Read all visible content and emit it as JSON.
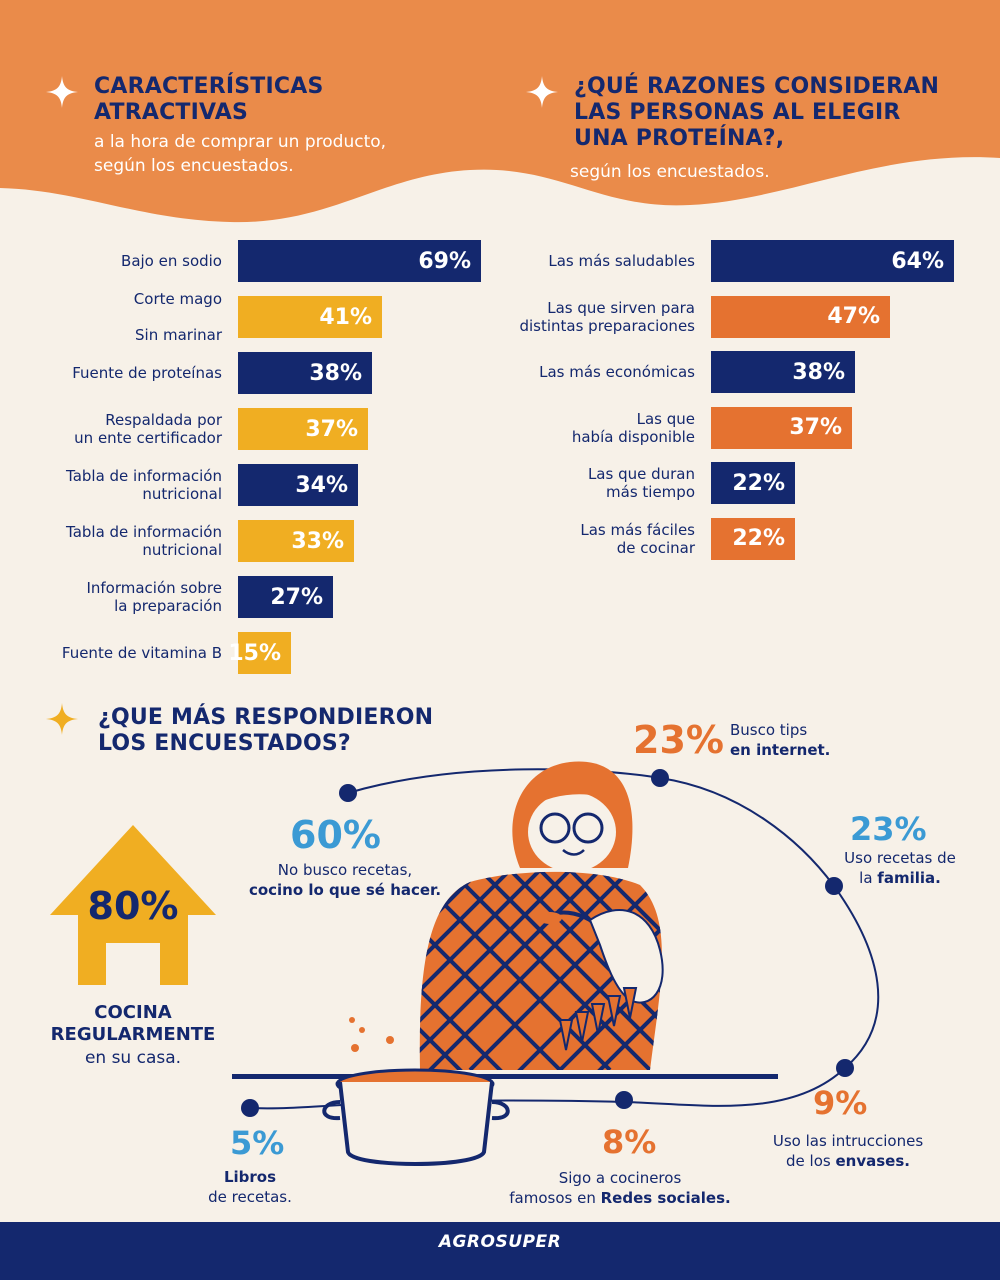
{
  "colors": {
    "navy": "#14286e",
    "orange": "#e57230",
    "yellow": "#f0ae22",
    "cream": "#f7f1e8",
    "header_orange": "#ea8b4a",
    "light_blue": "#3b9ad4"
  },
  "section_left": {
    "title": "CARACTERÍSTICAS\nATRACTIVAS",
    "subtitle": "a la hora de comprar un producto,\nsegún los encuestados."
  },
  "section_right": {
    "title": "¿QUÉ RAZONES CONSIDERAN\nLAS PERSONAS AL ELEGIR\nUNA PROTEÍNA?,",
    "subtitle": "según los encuestados."
  },
  "chart_data": [
    {
      "type": "bar",
      "orientation": "horizontal",
      "categories": [
        "Bajo en sodio",
        "Corte mago\n\nSin marinar",
        "Fuente de proteínas",
        "Respaldada por\nun ente certificador",
        "Tabla de información\nnutricional",
        "Tabla de información\nnutricional",
        "Información sobre\nla preparación",
        "Fuente de vitamina B"
      ],
      "values": [
        69,
        41,
        38,
        37,
        34,
        33,
        27,
        15
      ],
      "labels": [
        "69%",
        "41%",
        "38%",
        "37%",
        "34%",
        "33%",
        "27%",
        "15%"
      ],
      "colors": [
        "navy",
        "yellow",
        "navy",
        "yellow",
        "navy",
        "yellow",
        "navy",
        "yellow"
      ],
      "unit": "%"
    },
    {
      "type": "bar",
      "orientation": "horizontal",
      "categories": [
        "Las más saludables",
        "Las que sirven para\ndistintas preparaciones",
        "Las más económicas",
        "Las que\nhabía disponible",
        "Las que duran\nmás tiempo",
        "Las más fáciles\nde cocinar"
      ],
      "values": [
        64,
        47,
        38,
        37,
        22,
        22
      ],
      "labels": [
        "64%",
        "47%",
        "38%",
        "37%",
        "22%",
        "22%"
      ],
      "colors": [
        "navy",
        "orange",
        "navy",
        "orange",
        "navy",
        "orange"
      ],
      "unit": "%"
    }
  ],
  "section_bottom": {
    "title": "¿QUE MÁS RESPONDIERON\nLOS ENCUESTADOS?",
    "house": {
      "pct": "80%",
      "line1": "COCINA",
      "line2": "REGULARMENTE",
      "line3": "en su casa."
    },
    "stats": {
      "s60": {
        "pct": "60%",
        "text": "No busco recetas,",
        "bold": "cocino lo que sé hacer."
      },
      "s23a": {
        "pct": "23%",
        "text": "Busco tips",
        "bold": "en internet."
      },
      "s23b": {
        "pct": "23%",
        "text": "Uso recetas de",
        "text2": "la",
        "bold": "familia."
      },
      "s9": {
        "pct": "9%",
        "text": "Uso las intrucciones",
        "text2": "de los",
        "bold": "envases."
      },
      "s8": {
        "pct": "8%",
        "text": "Sigo a cocineros",
        "text2": "famosos en",
        "bold": "Redes sociales."
      },
      "s5": {
        "pct": "5%",
        "bold": "Libros",
        "text": "de recetas."
      }
    }
  },
  "footer": {
    "logo": "AGROSUPER"
  }
}
